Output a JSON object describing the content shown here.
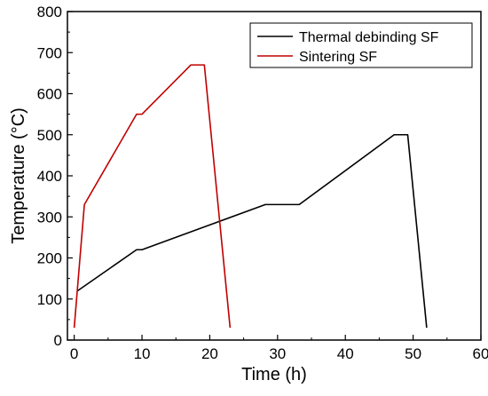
{
  "chart_data": {
    "type": "line",
    "title": "",
    "xlabel": "Time (h)",
    "ylabel": "Temperature (°C)",
    "xlim": [
      -1,
      60
    ],
    "ylim": [
      0,
      800
    ],
    "xticks": [
      0,
      10,
      20,
      30,
      40,
      50,
      60
    ],
    "yticks": [
      0,
      100,
      200,
      300,
      400,
      500,
      600,
      700,
      800
    ],
    "grid": false,
    "legend_position": "top-right",
    "series": [
      {
        "name": "Thermal debinding SF",
        "color": "#000000",
        "x": [
          0.5,
          9.2,
          10,
          28.2,
          33.2,
          47.2,
          49.2,
          52
        ],
        "y": [
          120,
          220,
          220,
          330,
          330,
          500,
          500,
          30
        ]
      },
      {
        "name": "Sintering SF",
        "color": "#c00000",
        "x": [
          0,
          1.5,
          9.2,
          10,
          17.2,
          19.2,
          23
        ],
        "y": [
          30,
          330,
          550,
          550,
          670,
          670,
          30
        ]
      }
    ]
  }
}
